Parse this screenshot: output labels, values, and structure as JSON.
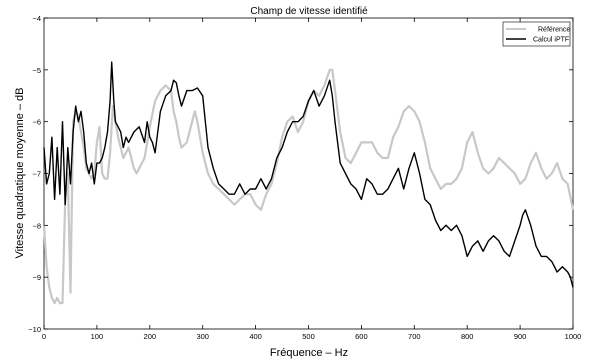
{
  "chart_data": {
    "type": "line",
    "title": "Champ de vitesse identifié",
    "xlabel": "Fréquence  –  Hz",
    "ylabel": "Vitesse quadratique moyenne  –  dB",
    "xlim": [
      0,
      1000
    ],
    "ylim": [
      -10,
      -4
    ],
    "xticks": [
      0,
      100,
      200,
      300,
      400,
      500,
      600,
      700,
      800,
      900,
      1000
    ],
    "yticks": [
      -10,
      -9,
      -8,
      -7,
      -6,
      -5,
      -4
    ],
    "grid": false,
    "legend_position": "top-right",
    "series": [
      {
        "name": "Référence",
        "color": "#c8c8c8",
        "x": [
          0,
          5,
          10,
          15,
          20,
          25,
          30,
          35,
          40,
          45,
          50,
          55,
          60,
          65,
          70,
          75,
          80,
          85,
          90,
          95,
          100,
          105,
          110,
          115,
          120,
          125,
          130,
          135,
          140,
          145,
          150,
          155,
          160,
          165,
          170,
          175,
          180,
          185,
          190,
          195,
          200,
          210,
          220,
          230,
          240,
          245,
          250,
          255,
          260,
          270,
          280,
          285,
          290,
          300,
          310,
          320,
          330,
          340,
          350,
          360,
          370,
          380,
          390,
          400,
          410,
          420,
          430,
          440,
          450,
          460,
          470,
          480,
          490,
          500,
          510,
          520,
          530,
          540,
          545,
          550,
          560,
          570,
          580,
          590,
          600,
          610,
          620,
          630,
          640,
          650,
          660,
          670,
          680,
          690,
          700,
          710,
          720,
          730,
          740,
          750,
          760,
          770,
          780,
          790,
          800,
          810,
          820,
          830,
          840,
          850,
          860,
          870,
          880,
          890,
          900,
          910,
          920,
          930,
          940,
          950,
          960,
          970,
          980,
          990,
          1000
        ],
        "values": [
          -8.0,
          -8.8,
          -9.2,
          -9.4,
          -9.5,
          -9.4,
          -9.5,
          -9.5,
          -7.5,
          -7.0,
          -9.3,
          -6.0,
          -5.8,
          -5.9,
          -6.2,
          -6.5,
          -6.9,
          -7.0,
          -7.1,
          -7.0,
          -6.4,
          -6.1,
          -7.0,
          -7.1,
          -7.1,
          -6.6,
          -5.7,
          -6.0,
          -6.3,
          -6.5,
          -6.7,
          -6.6,
          -6.5,
          -6.7,
          -6.9,
          -7.0,
          -6.9,
          -6.8,
          -6.7,
          -6.4,
          -6.1,
          -5.6,
          -5.4,
          -5.3,
          -5.4,
          -5.8,
          -6.0,
          -6.3,
          -6.5,
          -6.4,
          -6.0,
          -5.8,
          -6.0,
          -6.6,
          -7.0,
          -7.2,
          -7.3,
          -7.4,
          -7.5,
          -7.6,
          -7.5,
          -7.4,
          -7.4,
          -7.6,
          -7.7,
          -7.4,
          -7.2,
          -6.8,
          -6.3,
          -6.0,
          -5.9,
          -6.2,
          -6.0,
          -5.6,
          -5.4,
          -5.5,
          -5.3,
          -5.0,
          -5.0,
          -5.4,
          -6.2,
          -6.7,
          -6.8,
          -6.6,
          -6.4,
          -6.4,
          -6.4,
          -6.6,
          -6.7,
          -6.7,
          -6.3,
          -6.1,
          -5.8,
          -5.7,
          -5.8,
          -6.0,
          -6.4,
          -6.9,
          -7.1,
          -7.3,
          -7.2,
          -7.2,
          -7.1,
          -6.9,
          -6.4,
          -6.2,
          -6.6,
          -6.9,
          -7.0,
          -6.9,
          -6.7,
          -6.8,
          -6.9,
          -7.0,
          -7.2,
          -7.1,
          -6.8,
          -6.6,
          -6.9,
          -7.1,
          -7.0,
          -6.8,
          -7.1,
          -7.2,
          -7.7
        ]
      },
      {
        "name": "Calcul iPTF",
        "color": "#000000",
        "x": [
          0,
          5,
          10,
          15,
          20,
          25,
          30,
          35,
          40,
          45,
          50,
          55,
          60,
          65,
          70,
          75,
          80,
          85,
          90,
          95,
          100,
          105,
          110,
          115,
          120,
          125,
          128,
          132,
          135,
          140,
          145,
          150,
          155,
          160,
          170,
          180,
          190,
          195,
          200,
          205,
          210,
          220,
          230,
          240,
          245,
          250,
          255,
          260,
          270,
          280,
          290,
          300,
          310,
          320,
          330,
          340,
          350,
          360,
          370,
          380,
          390,
          400,
          410,
          420,
          430,
          440,
          450,
          460,
          470,
          480,
          490,
          500,
          510,
          520,
          530,
          540,
          545,
          550,
          560,
          570,
          580,
          590,
          600,
          610,
          620,
          630,
          640,
          650,
          660,
          670,
          680,
          690,
          700,
          710,
          720,
          730,
          740,
          750,
          760,
          770,
          780,
          790,
          800,
          810,
          820,
          830,
          840,
          850,
          860,
          870,
          880,
          890,
          900,
          905,
          910,
          920,
          930,
          940,
          950,
          960,
          970,
          980,
          990,
          995,
          1000
        ],
        "values": [
          -6.5,
          -7.2,
          -7.0,
          -6.3,
          -7.5,
          -6.5,
          -7.4,
          -6.0,
          -7.6,
          -6.5,
          -7.2,
          -6.2,
          -5.7,
          -6.0,
          -5.8,
          -6.2,
          -6.8,
          -7.0,
          -6.8,
          -7.2,
          -6.8,
          -6.8,
          -6.7,
          -6.5,
          -6.2,
          -5.6,
          -4.85,
          -5.6,
          -6.0,
          -6.1,
          -6.2,
          -6.5,
          -6.3,
          -6.4,
          -6.2,
          -6.1,
          -6.4,
          -6.0,
          -6.3,
          -6.4,
          -6.6,
          -5.8,
          -5.5,
          -5.4,
          -5.2,
          -5.25,
          -5.5,
          -5.7,
          -5.4,
          -5.4,
          -5.35,
          -5.5,
          -6.5,
          -6.9,
          -7.2,
          -7.3,
          -7.4,
          -7.4,
          -7.2,
          -7.4,
          -7.3,
          -7.3,
          -7.1,
          -7.3,
          -7.1,
          -6.7,
          -6.5,
          -6.2,
          -6.0,
          -6.0,
          -5.9,
          -5.6,
          -5.4,
          -5.7,
          -5.5,
          -5.2,
          -5.5,
          -6.0,
          -6.8,
          -7.0,
          -7.2,
          -7.3,
          -7.5,
          -7.1,
          -7.2,
          -7.4,
          -7.4,
          -7.3,
          -7.1,
          -6.9,
          -7.3,
          -6.9,
          -6.6,
          -7.0,
          -7.5,
          -7.6,
          -7.9,
          -8.1,
          -8.0,
          -8.1,
          -8.0,
          -8.2,
          -8.6,
          -8.4,
          -8.3,
          -8.5,
          -8.3,
          -8.2,
          -8.3,
          -8.5,
          -8.6,
          -8.3,
          -8.0,
          -7.8,
          -7.7,
          -8.0,
          -8.4,
          -8.6,
          -8.6,
          -8.7,
          -8.9,
          -8.8,
          -8.9,
          -9.0,
          -9.2
        ]
      }
    ]
  }
}
